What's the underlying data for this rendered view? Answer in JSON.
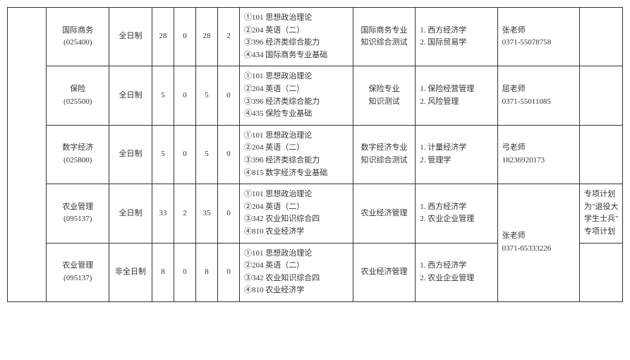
{
  "rows": [
    {
      "major": "国际商务\n(025400)",
      "mode": "全日制",
      "n1": "28",
      "n2": "0",
      "n3": "28",
      "n4": "2",
      "exam": "①101 思想政治理论\n②204 英语（二）\n③396 经济类综合能力\n④434 国际商务专业基础",
      "retest": "国际商务专业\n知识综合测试",
      "ref": "1. 西方经济学\n2. 国际贸易学",
      "contact": "张老师\n0371-55078758",
      "notes": ""
    },
    {
      "major": "保险\n(025500)",
      "mode": "全日制",
      "n1": "5",
      "n2": "0",
      "n3": "5",
      "n4": "0",
      "exam": "①101 思想政治理论\n②204 英语（二）\n③396 经济类综合能力\n④435 保险专业基础",
      "retest": "保险专业\n知识测试",
      "ref": "1. 保险经营管理\n2. 风险管理",
      "contact": "屈老师\n0371-55011085",
      "notes": ""
    },
    {
      "major": "数字经济\n(025800)",
      "mode": "全日制",
      "n1": "5",
      "n2": "0",
      "n3": "5",
      "n4": "0",
      "exam": "①101 思想政治理论\n②204 英语（二）\n③396 经济类综合能力\n④815 数字经济专业基础",
      "retest": "数字经济专业\n知识综合测试",
      "ref": "1. 计量经济学\n2. 管理学",
      "contact": "弓老师\n18236920173",
      "notes": ""
    },
    {
      "major": "农业管理\n(095137)",
      "mode": "全日制",
      "n1": "33",
      "n2": "2",
      "n3": "35",
      "n4": "0",
      "exam": "①101 思想政治理论\n②204 英语（二）\n③342 农业知识综合四\n④810 农业经济学",
      "retest": "农业经济管理",
      "ref": "1. 西方经济学\n2. 农业企业管理",
      "contact_merged": "张老师\n0371-65333226",
      "notes": "专项计划\n为\"退役大\n学生士兵\"\n专项计划"
    },
    {
      "major": "农业管理\n(095137)",
      "mode": "非全日制",
      "n1": "8",
      "n2": "0",
      "n3": "8",
      "n4": "0",
      "exam": "①101 思想政治理论\n②204 英语（二）\n③342 农业知识综合四\n④810 农业经济学",
      "retest": "农业经济管理",
      "ref": "1. 西方经济学\n2. 农业企业管理",
      "notes": ""
    }
  ],
  "colwidths": [
    "50px",
    "80px",
    "55px",
    "28px",
    "28px",
    "28px",
    "28px",
    "145px",
    "80px",
    "105px",
    "105px",
    "55px"
  ]
}
